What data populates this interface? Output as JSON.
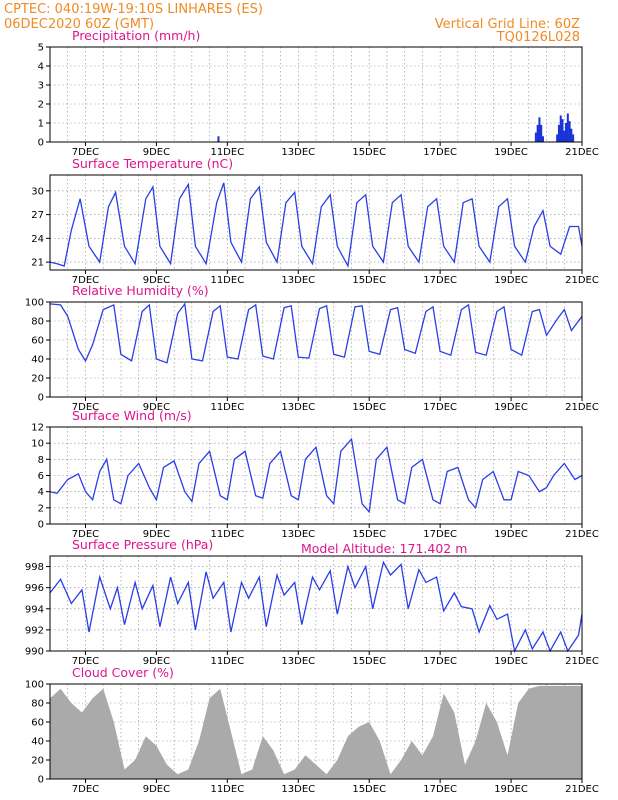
{
  "header": {
    "line1": "CPTEC:   040:19W-19:10S   LINHARES (ES)",
    "line2": "06DEC2020 60Z (GMT)",
    "grid_line": "Vertical Grid Line: 60Z",
    "code": "TQ0126L028",
    "model_altitude": "Model Altitude: 171.402 m"
  },
  "colors": {
    "header": "#f08a24",
    "title": "#e0148c",
    "line": "#2a3ee8",
    "bar_precip": "#1a32d8",
    "bar_cloud": "#aaaaaa"
  },
  "x_ticks": [
    "7DEC",
    "9DEC",
    "11DEC",
    "13DEC",
    "15DEC",
    "17DEC",
    "19DEC",
    "21DEC"
  ],
  "chart_data": [
    {
      "id": "precip",
      "type": "bar",
      "title": "Precipitation (mm/h)",
      "ylim": [
        0,
        5
      ],
      "yticks": [
        0,
        1,
        2,
        3,
        4,
        5
      ],
      "x_start": 6.0,
      "x_end": 21.0,
      "step": 0.125,
      "events": [
        [
          10.75,
          0.3
        ],
        [
          19.7,
          0.5
        ],
        [
          19.75,
          0.9
        ],
        [
          19.8,
          1.3
        ],
        [
          19.85,
          0.9
        ],
        [
          19.9,
          0.3
        ],
        [
          20.3,
          0.4
        ],
        [
          20.35,
          0.9
        ],
        [
          20.4,
          1.4
        ],
        [
          20.45,
          1.2
        ],
        [
          20.5,
          0.6
        ],
        [
          20.55,
          1.0
        ],
        [
          20.6,
          1.5
        ],
        [
          20.65,
          1.1
        ],
        [
          20.7,
          0.7
        ],
        [
          20.75,
          0.4
        ]
      ]
    },
    {
      "id": "temp",
      "type": "line",
      "title": "Surface Temperature (nC)",
      "ylim": [
        20,
        32
      ],
      "yticks": [
        21,
        24,
        27,
        30
      ],
      "x": [
        6.0,
        6.2,
        6.4,
        6.6,
        6.85,
        7.1,
        7.4,
        7.65,
        7.85,
        8.1,
        8.4,
        8.7,
        8.9,
        9.1,
        9.4,
        9.65,
        9.9,
        10.1,
        10.4,
        10.7,
        10.9,
        11.1,
        11.4,
        11.65,
        11.9,
        12.1,
        12.4,
        12.65,
        12.9,
        13.1,
        13.4,
        13.65,
        13.9,
        14.1,
        14.4,
        14.65,
        14.9,
        15.1,
        15.4,
        15.65,
        15.9,
        16.1,
        16.4,
        16.65,
        16.9,
        17.1,
        17.4,
        17.65,
        17.9,
        18.1,
        18.4,
        18.65,
        18.9,
        19.1,
        19.4,
        19.65,
        19.9,
        20.1,
        20.4,
        20.65,
        20.9,
        21.0
      ],
      "y": [
        21.0,
        20.8,
        20.5,
        25.0,
        29.0,
        23.0,
        21.0,
        28.0,
        29.8,
        23.0,
        20.8,
        29.0,
        30.5,
        23.0,
        20.8,
        29.0,
        30.8,
        23.0,
        20.8,
        28.5,
        31.0,
        23.5,
        21.0,
        29.0,
        30.5,
        23.5,
        21.0,
        28.5,
        29.8,
        23.0,
        20.8,
        28.0,
        29.5,
        23.0,
        20.5,
        28.5,
        29.5,
        23.0,
        21.0,
        28.5,
        29.5,
        23.0,
        21.0,
        28.0,
        29.0,
        23.0,
        21.0,
        28.5,
        29.0,
        23.0,
        21.0,
        28.0,
        29.0,
        23.0,
        21.0,
        25.5,
        27.5,
        23.0,
        22.0,
        25.5,
        25.5,
        23.0
      ]
    },
    {
      "id": "rh",
      "type": "line",
      "title": "Relative Humidity (%)",
      "ylim": [
        0,
        100
      ],
      "yticks": [
        0,
        20,
        40,
        60,
        80,
        100
      ],
      "x": [
        6.0,
        6.3,
        6.5,
        6.8,
        7.0,
        7.2,
        7.5,
        7.8,
        8.0,
        8.3,
        8.6,
        8.8,
        9.0,
        9.3,
        9.6,
        9.8,
        10.0,
        10.3,
        10.6,
        10.8,
        11.0,
        11.3,
        11.6,
        11.8,
        12.0,
        12.3,
        12.6,
        12.8,
        13.0,
        13.3,
        13.6,
        13.8,
        14.0,
        14.3,
        14.6,
        14.8,
        15.0,
        15.3,
        15.6,
        15.8,
        16.0,
        16.3,
        16.6,
        16.8,
        17.0,
        17.3,
        17.6,
        17.8,
        18.0,
        18.3,
        18.6,
        18.8,
        19.0,
        19.3,
        19.6,
        19.8,
        20.0,
        20.3,
        20.5,
        20.7,
        21.0
      ],
      "y": [
        98,
        97,
        85,
        50,
        38,
        55,
        92,
        97,
        45,
        38,
        90,
        97,
        40,
        36,
        88,
        98,
        40,
        38,
        90,
        96,
        42,
        40,
        92,
        97,
        43,
        40,
        94,
        96,
        42,
        41,
        93,
        96,
        45,
        42,
        95,
        96,
        48,
        45,
        92,
        94,
        50,
        46,
        90,
        95,
        48,
        44,
        92,
        97,
        47,
        44,
        90,
        95,
        50,
        44,
        90,
        92,
        65,
        82,
        92,
        70,
        85
      ]
    },
    {
      "id": "wind",
      "type": "line",
      "title": "Surface Wind (m/s)",
      "ylim": [
        0,
        12
      ],
      "yticks": [
        0,
        2,
        4,
        6,
        8,
        10,
        12
      ],
      "x": [
        6.0,
        6.2,
        6.5,
        6.8,
        7.0,
        7.2,
        7.4,
        7.6,
        7.8,
        8.0,
        8.2,
        8.5,
        8.8,
        9.0,
        9.2,
        9.5,
        9.8,
        10.0,
        10.2,
        10.5,
        10.8,
        11.0,
        11.2,
        11.5,
        11.8,
        12.0,
        12.2,
        12.5,
        12.8,
        13.0,
        13.2,
        13.5,
        13.8,
        14.0,
        14.2,
        14.5,
        14.8,
        15.0,
        15.2,
        15.5,
        15.8,
        16.0,
        16.2,
        16.5,
        16.8,
        17.0,
        17.2,
        17.5,
        17.8,
        18.0,
        18.2,
        18.5,
        18.8,
        19.0,
        19.2,
        19.5,
        19.8,
        20.0,
        20.2,
        20.5,
        20.8,
        21.0
      ],
      "y": [
        4.0,
        3.8,
        5.5,
        6.2,
        4.0,
        3.0,
        6.5,
        8.0,
        3.0,
        2.5,
        6.0,
        7.5,
        4.5,
        3.0,
        7.0,
        7.8,
        4.0,
        2.8,
        7.5,
        9.0,
        3.5,
        3.0,
        8.0,
        9.0,
        3.5,
        3.2,
        7.5,
        9.0,
        3.5,
        3.0,
        8.0,
        9.5,
        3.5,
        2.5,
        9.0,
        10.5,
        2.5,
        1.5,
        8.0,
        9.5,
        3.0,
        2.5,
        7.0,
        8.0,
        3.0,
        2.5,
        6.5,
        7.0,
        3.0,
        2.0,
        5.5,
        6.5,
        3.0,
        3.0,
        6.5,
        6.0,
        4.0,
        4.5,
        6.0,
        7.5,
        5.5,
        6.0
      ]
    },
    {
      "id": "pressure",
      "type": "line",
      "title": "Surface Pressure (hPa)",
      "ylim": [
        990,
        999
      ],
      "yticks": [
        990,
        992,
        994,
        996,
        998
      ],
      "x": [
        6.0,
        6.3,
        6.6,
        6.9,
        7.1,
        7.4,
        7.7,
        7.9,
        8.1,
        8.4,
        8.6,
        8.9,
        9.1,
        9.4,
        9.6,
        9.9,
        10.1,
        10.4,
        10.6,
        10.9,
        11.1,
        11.4,
        11.6,
        11.9,
        12.1,
        12.4,
        12.6,
        12.9,
        13.1,
        13.4,
        13.6,
        13.9,
        14.1,
        14.4,
        14.6,
        14.9,
        15.1,
        15.4,
        15.6,
        15.9,
        16.1,
        16.4,
        16.6,
        16.9,
        17.1,
        17.4,
        17.6,
        17.9,
        18.1,
        18.4,
        18.6,
        18.9,
        19.1,
        19.4,
        19.6,
        19.9,
        20.1,
        20.4,
        20.6,
        20.9,
        21.0
      ],
      "y": [
        995.5,
        996.8,
        994.5,
        995.8,
        991.8,
        997.0,
        994.0,
        996.0,
        992.5,
        996.5,
        994.0,
        996.2,
        992.3,
        997.0,
        994.5,
        996.5,
        992.0,
        997.5,
        995.0,
        996.5,
        991.8,
        996.5,
        995.0,
        997.0,
        992.3,
        997.2,
        995.3,
        996.5,
        992.5,
        997.0,
        995.8,
        997.6,
        993.5,
        998.0,
        996.0,
        998.0,
        994.0,
        998.4,
        997.2,
        998.2,
        994.0,
        997.7,
        996.5,
        997.0,
        993.8,
        995.5,
        994.2,
        994.0,
        991.8,
        994.3,
        993.0,
        993.5,
        990.0,
        992.0,
        990.2,
        991.8,
        990.0,
        991.8,
        990.0,
        991.5,
        993.5
      ]
    },
    {
      "id": "cloud",
      "type": "bar",
      "title": "Cloud Cover (%)",
      "ylim": [
        0,
        100
      ],
      "yticks": [
        0,
        20,
        40,
        60,
        80,
        100
      ],
      "x": [
        6.0,
        6.3,
        6.6,
        6.9,
        7.2,
        7.5,
        7.8,
        8.1,
        8.4,
        8.7,
        9.0,
        9.3,
        9.6,
        9.9,
        10.2,
        10.5,
        10.8,
        11.1,
        11.4,
        11.7,
        12.0,
        12.3,
        12.6,
        12.9,
        13.2,
        13.5,
        13.8,
        14.1,
        14.4,
        14.7,
        15.0,
        15.3,
        15.6,
        15.9,
        16.2,
        16.5,
        16.8,
        17.1,
        17.4,
        17.7,
        18.0,
        18.3,
        18.6,
        18.9,
        19.2,
        19.5,
        19.8,
        20.1,
        20.4,
        20.7,
        21.0
      ],
      "y": [
        85,
        95,
        80,
        70,
        85,
        95,
        60,
        10,
        20,
        45,
        35,
        15,
        5,
        10,
        40,
        85,
        95,
        50,
        5,
        10,
        45,
        30,
        5,
        10,
        25,
        15,
        5,
        20,
        45,
        55,
        60,
        40,
        5,
        20,
        40,
        25,
        45,
        90,
        70,
        15,
        40,
        80,
        60,
        25,
        80,
        95,
        98,
        98,
        98,
        98,
        98
      ]
    }
  ]
}
